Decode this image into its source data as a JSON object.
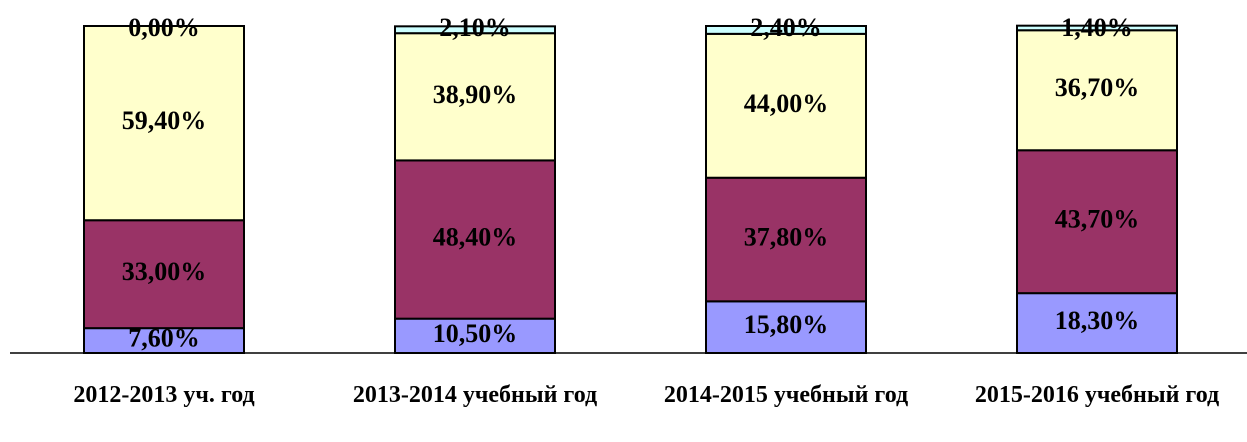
{
  "chart_data": {
    "type": "bar",
    "stacked": true,
    "categories": [
      "2012-2013 уч. год",
      "2013-2014 учебный год",
      "2014-2015 учебный год",
      "2015-2016 учебный год"
    ],
    "series": [
      {
        "color": "#9999ff",
        "values": [
          7.6,
          10.5,
          15.8,
          18.3
        ],
        "value_labels": [
          "7,60%",
          "10,50%",
          "15,80%",
          "18,30%"
        ]
      },
      {
        "color": "#993366",
        "values": [
          33.0,
          48.4,
          37.8,
          43.7
        ],
        "value_labels": [
          "33,00%",
          "48,40%",
          "37,80%",
          "43,70%"
        ]
      },
      {
        "color": "#ffffcc",
        "values": [
          59.4,
          38.9,
          44.0,
          36.7
        ],
        "value_labels": [
          "59,40%",
          "38,90%",
          "44,00%",
          "36,70%"
        ]
      },
      {
        "color": "#ccffff",
        "values": [
          0,
          2.1,
          2.4,
          1.4
        ],
        "value_labels": [
          "0,00%",
          "2,10%",
          "2,40%",
          "1,40%"
        ]
      }
    ],
    "ylim": [
      0,
      100
    ]
  }
}
